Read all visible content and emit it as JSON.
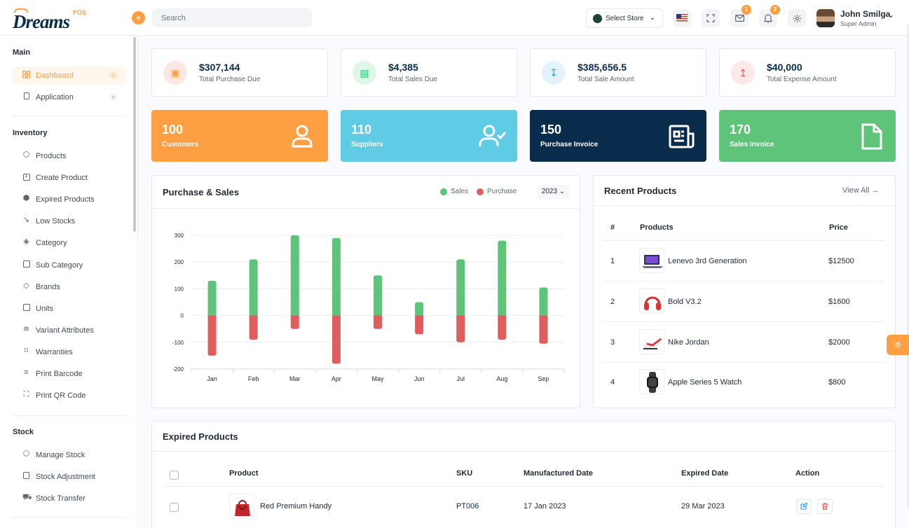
{
  "header": {
    "logo_text": "Dreams",
    "logo_pos": "POS",
    "search_placeholder": "Search",
    "store_label": "Select Store",
    "mail_count": "1",
    "notif_count": "2",
    "user_name": "John Smilga",
    "user_role": "Super Admin"
  },
  "sidebar": {
    "main_title": "Main",
    "main_items": [
      {
        "label": "Dashboard",
        "icon": "grid-icon",
        "active": true
      },
      {
        "label": "Application",
        "icon": "app-icon"
      }
    ],
    "inventory_title": "Inventory",
    "inventory_items": [
      {
        "label": "Products",
        "icon": "box-icon"
      },
      {
        "label": "Create Product",
        "icon": "plus-square-icon"
      },
      {
        "label": "Expired Products",
        "icon": "codesandbox-icon"
      },
      {
        "label": "Low Stocks",
        "icon": "trending-down-icon"
      },
      {
        "label": "Category",
        "icon": "codepen-icon"
      },
      {
        "label": "Sub Category",
        "icon": "speaker-icon"
      },
      {
        "label": "Brands",
        "icon": "tag-icon"
      },
      {
        "label": "Units",
        "icon": "speaker-icon"
      },
      {
        "label": "Variant Attributes",
        "icon": "layers-icon"
      },
      {
        "label": "Warranties",
        "icon": "bookmark-icon"
      },
      {
        "label": "Print Barcode",
        "icon": "barcode-icon"
      },
      {
        "label": "Print QR Code",
        "icon": "qr-icon"
      }
    ],
    "stock_title": "Stock",
    "stock_items": [
      {
        "label": "Manage Stock",
        "icon": "package-icon"
      },
      {
        "label": "Stock Adjustment",
        "icon": "clipboard-icon"
      },
      {
        "label": "Stock Transfer",
        "icon": "truck-icon"
      }
    ]
  },
  "stats": [
    {
      "value": "$307,144",
      "label": "Total Purchase Due",
      "color": "#fde3e3",
      "fg": "#ff9f43"
    },
    {
      "value": "$4,385",
      "label": "Total Sales Due",
      "color": "#dff5e6",
      "fg": "#28c76f"
    },
    {
      "value": "$385,656.5",
      "label": "Total Sale Amount",
      "color": "#e2f2ff",
      "fg": "#1b9cfc"
    },
    {
      "value": "$40,000",
      "label": "Total Expense Amount",
      "color": "#fde6e6",
      "fg": "#ea5455"
    }
  ],
  "counts": [
    {
      "value": "100",
      "label": "Customers",
      "color": "#ff9f43"
    },
    {
      "value": "110",
      "label": "Suppliers",
      "color": "#5fcbe5"
    },
    {
      "value": "150",
      "label": "Purchase Invoice",
      "color": "#092c4c"
    },
    {
      "value": "170",
      "label": "Sales Invoice",
      "color": "#5dc47a"
    }
  ],
  "chart_panel": {
    "title": "Purchase & Sales",
    "legend_sales": "Sales",
    "legend_purchase": "Purchase",
    "year": "2023"
  },
  "chart_data": {
    "type": "bar",
    "categories": [
      "Jan",
      "Feb",
      "Mar",
      "Apr",
      "May",
      "Jun",
      "Jul",
      "Aug",
      "Sep"
    ],
    "series": [
      {
        "name": "Sales",
        "color": "#5dc47a",
        "values": [
          130,
          210,
          300,
          290,
          150,
          50,
          210,
          280,
          105
        ]
      },
      {
        "name": "Purchase",
        "color": "#e05d5d",
        "values": [
          -150,
          -90,
          -50,
          -180,
          -50,
          -70,
          -100,
          -90,
          -105
        ]
      }
    ],
    "ylim": [
      -200,
      300
    ],
    "yticks": [
      300,
      200,
      100,
      0,
      -100,
      -200
    ],
    "grid": true,
    "stacked": true
  },
  "recent": {
    "title": "Recent Products",
    "view_all": "View All",
    "col_num": "#",
    "col_product": "Products",
    "col_price": "Price",
    "rows": [
      {
        "num": "1",
        "name": "Lenevo 3rd Generation",
        "price": "$12500",
        "thumb": "laptop"
      },
      {
        "num": "2",
        "name": "Bold V3.2",
        "price": "$1600",
        "thumb": "headphone"
      },
      {
        "num": "3",
        "name": "Nike Jordan",
        "price": "$2000",
        "thumb": "shoe"
      },
      {
        "num": "4",
        "name": "Apple Series 5 Watch",
        "price": "$800",
        "thumb": "watch"
      }
    ]
  },
  "expired": {
    "title": "Expired Products",
    "col_product": "Product",
    "col_sku": "SKU",
    "col_mfg": "Manufactured Date",
    "col_exp": "Expired Date",
    "col_action": "Action",
    "rows": [
      {
        "name": "Red Premium Handy",
        "sku": "PT006",
        "mfg": "17 Jan 2023",
        "exp": "29 Mar 2023"
      }
    ]
  }
}
